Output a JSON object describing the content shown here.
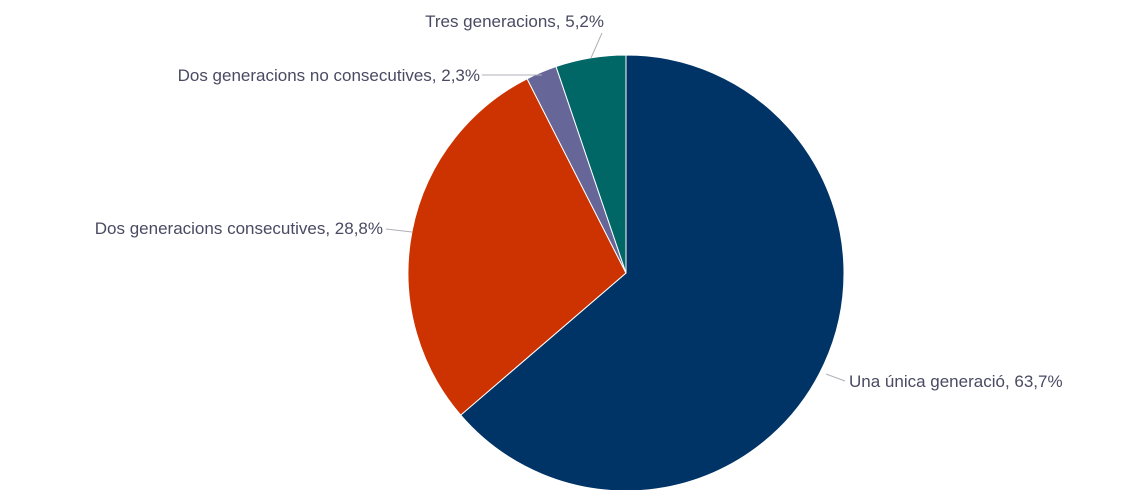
{
  "chart_data": {
    "type": "pie",
    "start_angle_deg": 0,
    "direction": "clockwise",
    "slices": [
      {
        "label": "Una única generació",
        "value": 63.7,
        "display": "Una única generació, 63,7%",
        "color": "#003366"
      },
      {
        "label": "Dos generacions consecutives",
        "value": 28.8,
        "display": "Dos generacions consecutives, 28,8%",
        "color": "#cc3300"
      },
      {
        "label": "Dos generacions no consecutives",
        "value": 2.3,
        "display": "Dos generacions no consecutives, 2,3%",
        "color": "#666699"
      },
      {
        "label": "Tres generacions",
        "value": 5.2,
        "display": "Tres generacions, 5,2%",
        "color": "#006666"
      }
    ],
    "legend": "none"
  }
}
